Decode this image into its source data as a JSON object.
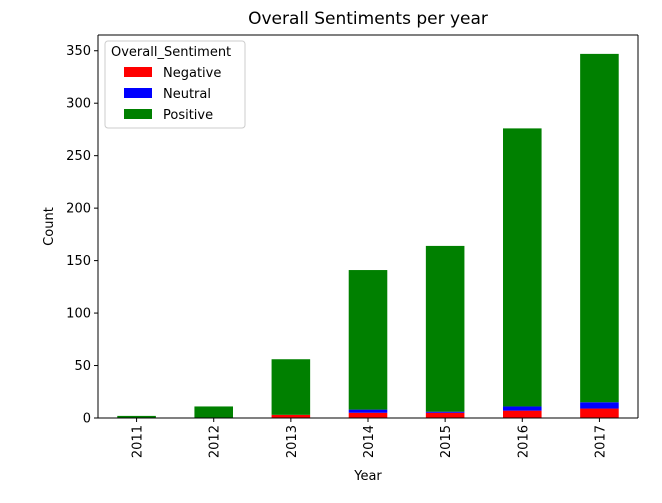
{
  "chart_data": {
    "type": "bar",
    "stacked": true,
    "title": "Overall Sentiments per year",
    "xlabel": "Year",
    "ylabel": "Count",
    "categories": [
      "2011",
      "2012",
      "2013",
      "2014",
      "2015",
      "2016",
      "2017"
    ],
    "series": [
      {
        "name": "Negative",
        "color": "#ff0000",
        "values": [
          0,
          0,
          3,
          5,
          5,
          7,
          9
        ]
      },
      {
        "name": "Neutral",
        "color": "#0000ff",
        "values": [
          0,
          0,
          0,
          3,
          1,
          4,
          6
        ]
      },
      {
        "name": "Positive",
        "color": "#008000",
        "values": [
          2,
          11,
          53,
          133,
          158,
          265,
          332
        ]
      }
    ],
    "ylim": [
      0,
      365
    ],
    "yticks": [
      0,
      50,
      100,
      150,
      200,
      250,
      300,
      350
    ],
    "legend": {
      "title": "Overall_Sentiment",
      "position": "upper-left"
    },
    "grid": false
  }
}
